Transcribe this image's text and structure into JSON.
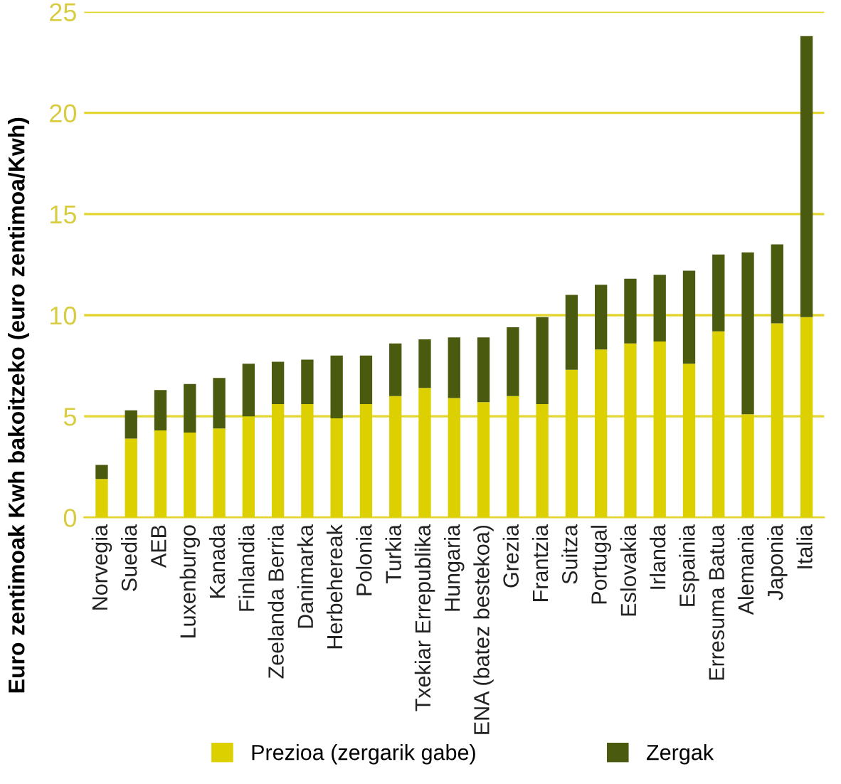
{
  "chart_data": {
    "type": "bar",
    "stacked": true,
    "ylabel": "Euro zentimoak Kwh bakoitzeko (euro zentimoa/Kwh)",
    "categories": [
      "Norvegia",
      "Suedia",
      "AEB",
      "Luxenburgo",
      "Kanada",
      "Finlandia",
      "Zeelanda Berria",
      "Danimarka",
      "Herbehereak",
      "Polonia",
      "Turkia",
      "Txekiar Errepublika",
      "Hungaria",
      "ENA (batez bestekoa)",
      "Grezia",
      "Frantzia",
      "Suitza",
      "Portugal",
      "Eslovakia",
      "Irlanda",
      "Espainia",
      "Erresuma Batua",
      "Alemania",
      "Japonia",
      "Italia"
    ],
    "series": [
      {
        "name": "Prezioa (zergarik gabe)",
        "color": "#ddd000",
        "values": [
          1.9,
          3.9,
          4.3,
          4.2,
          4.4,
          5.0,
          5.6,
          5.6,
          4.9,
          5.6,
          6.0,
          6.4,
          5.9,
          5.7,
          6.0,
          5.6,
          7.3,
          8.3,
          8.6,
          8.7,
          7.6,
          9.2,
          5.1,
          9.6,
          9.9
        ]
      },
      {
        "name": "Zergak",
        "color": "#4a5a0e",
        "values": [
          0.7,
          1.4,
          2.0,
          2.4,
          2.5,
          2.6,
          2.1,
          2.2,
          3.1,
          2.4,
          2.6,
          2.4,
          3.0,
          3.2,
          3.4,
          4.3,
          3.7,
          3.2,
          3.2,
          3.3,
          4.6,
          3.8,
          8.0,
          3.9,
          13.9
        ]
      }
    ],
    "ylim": [
      0,
      25
    ],
    "yticks": [
      0,
      5,
      10,
      15,
      20,
      25
    ],
    "grid": "y",
    "legend": "bottom"
  }
}
